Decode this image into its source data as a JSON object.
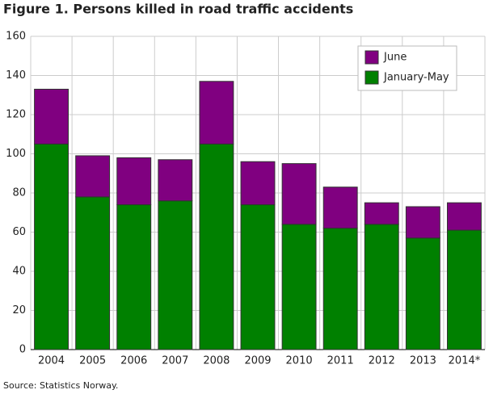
{
  "chart_data": {
    "type": "stacked_bar",
    "title": "Figure 1. Persons killed in road traffic accidents",
    "source": "Source: Statistics Norway.",
    "categories": [
      "2004",
      "2005",
      "2006",
      "2007",
      "2008",
      "2009",
      "2010",
      "2011",
      "2012",
      "2013",
      "2014*"
    ],
    "series": [
      {
        "name": "June",
        "color": "#800080",
        "values": [
          28,
          21,
          24,
          21,
          32,
          22,
          31,
          21,
          11,
          16,
          14
        ]
      },
      {
        "name": "January-May",
        "color": "#008000",
        "values": [
          105,
          78,
          74,
          76,
          105,
          74,
          64,
          62,
          64,
          57,
          61
        ]
      }
    ],
    "ylim": [
      0,
      160
    ],
    "yticks": [
      0,
      20,
      40,
      60,
      80,
      100,
      120,
      140,
      160
    ],
    "grid": true,
    "legend": "top-right"
  }
}
